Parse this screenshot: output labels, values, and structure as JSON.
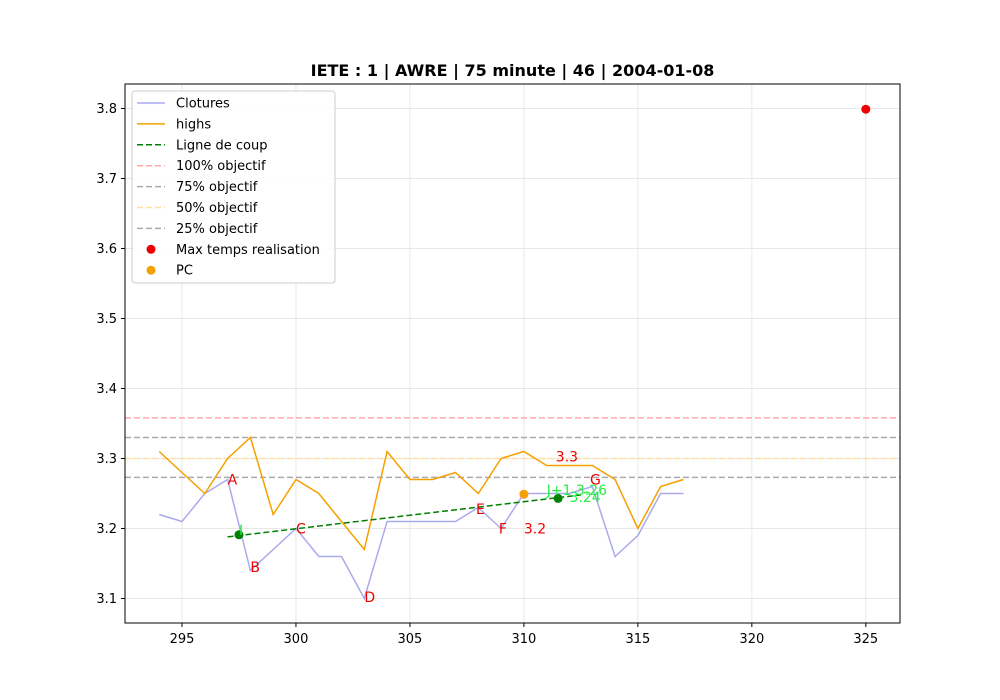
{
  "chart_data": {
    "type": "line",
    "title": "IETE : 1 | AWRE | 75 minute | 46 | 2004-01-08",
    "xlabel": "",
    "ylabel": "",
    "xlim": [
      292.5,
      326.5
    ],
    "ylim": [
      3.065,
      3.835
    ],
    "xticks": [
      295,
      300,
      305,
      310,
      315,
      320,
      325
    ],
    "yticks": [
      3.1,
      3.2,
      3.3,
      3.4,
      3.5,
      3.6,
      3.7,
      3.8
    ],
    "grid": true,
    "legend_position": "top-left",
    "series": [
      {
        "name": "Clotures",
        "kind": "line",
        "color": "#aaaaee",
        "dash": "solid",
        "x": [
          294,
          295,
          296,
          297,
          298,
          299,
          300,
          301,
          302,
          303,
          304,
          305,
          306,
          307,
          308,
          309,
          310,
          311,
          312,
          313,
          314,
          315,
          316,
          317
        ],
        "y": [
          3.22,
          3.21,
          3.25,
          3.27,
          3.14,
          3.17,
          3.2,
          3.16,
          3.16,
          3.1,
          3.21,
          3.21,
          3.21,
          3.21,
          3.23,
          3.2,
          3.25,
          3.25,
          3.25,
          3.26,
          3.16,
          3.19,
          3.25,
          3.25
        ]
      },
      {
        "name": "highs",
        "kind": "line",
        "color": "#f5a000",
        "dash": "solid",
        "x": [
          294,
          295,
          296,
          297,
          298,
          299,
          300,
          301,
          302,
          303,
          304,
          305,
          306,
          307,
          308,
          309,
          310,
          311,
          312,
          313,
          314,
          315,
          316,
          317
        ],
        "y": [
          3.31,
          3.28,
          3.25,
          3.3,
          3.33,
          3.22,
          3.27,
          3.25,
          3.21,
          3.17,
          3.31,
          3.27,
          3.27,
          3.28,
          3.25,
          3.3,
          3.31,
          3.29,
          3.29,
          3.29,
          3.27,
          3.2,
          3.26,
          3.27
        ]
      },
      {
        "name": "Ligne de coup",
        "kind": "line",
        "color": "#008000",
        "dash": "dashed",
        "x": [
          297,
          312.5
        ],
        "y": [
          3.188,
          3.248
        ]
      },
      {
        "name": "100% objectif",
        "kind": "hline",
        "color": "#ffaaaa",
        "dash": "dashed",
        "y": 3.358
      },
      {
        "name": "75% objectif",
        "kind": "hline",
        "color": "#aaaaaa",
        "dash": "dashed",
        "y": 3.33
      },
      {
        "name": "50% objectif",
        "kind": "hline",
        "color": "#ffe0a0",
        "dash": "dashed",
        "y": 3.3
      },
      {
        "name": "25% objectif",
        "kind": "hline",
        "color": "#aaaaaa",
        "dash": "dashed",
        "y": 3.273
      },
      {
        "name": "Max temps realisation",
        "kind": "scatter",
        "color": "#ee0000",
        "points": [
          [
            325,
            3.799
          ]
        ]
      },
      {
        "name": "PC",
        "kind": "scatter",
        "color": "#f5a000",
        "points": [
          [
            310,
            3.249
          ]
        ]
      }
    ],
    "markers": [
      {
        "x": 297.5,
        "y": 3.191,
        "color": "#008000"
      },
      {
        "x": 311.5,
        "y": 3.243,
        "color": "#008000"
      }
    ],
    "annotations": [
      {
        "text": "A",
        "x": 297.0,
        "y": 3.27,
        "color": "#ee0000"
      },
      {
        "text": "B",
        "x": 298.0,
        "y": 3.145,
        "color": "#ee0000"
      },
      {
        "text": "C",
        "x": 300.0,
        "y": 3.2,
        "color": "#ee0000"
      },
      {
        "text": "D",
        "x": 303.0,
        "y": 3.102,
        "color": "#ee0000"
      },
      {
        "text": "E",
        "x": 307.9,
        "y": 3.228,
        "color": "#ee0000"
      },
      {
        "text": "F",
        "x": 308.9,
        "y": 3.2,
        "color": "#ee0000"
      },
      {
        "text": "G",
        "x": 312.9,
        "y": 3.27,
        "color": "#ee0000"
      },
      {
        "text": "3.3",
        "x": 311.4,
        "y": 3.303,
        "color": "#ee0000"
      },
      {
        "text": "3.2",
        "x": 310.0,
        "y": 3.2,
        "color": "#ee0000"
      },
      {
        "text": "I",
        "x": 297.5,
        "y": 3.198,
        "color": "#22ee44"
      },
      {
        "text": "J+1 3.26",
        "x": 311.0,
        "y": 3.255,
        "color": "#22ee44"
      },
      {
        "text": "3.24",
        "x": 312.0,
        "y": 3.245,
        "color": "#22ee44"
      }
    ]
  }
}
